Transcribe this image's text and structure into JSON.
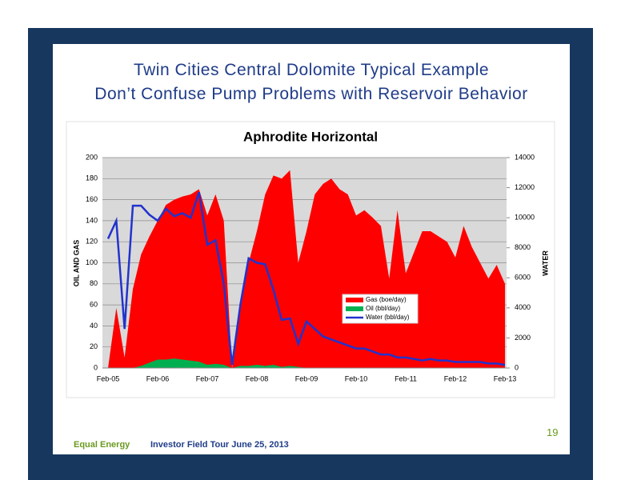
{
  "slide": {
    "title_lines": [
      "Twin Cities Central Dolomite Typical Example",
      "Don’t Confuse Pump Problems with Reservoir Behavior"
    ],
    "footer_company": "Equal Energy",
    "footer_event": "Investor Field Tour June 25, 2013",
    "page_number": "19"
  },
  "chart_data": {
    "type": "area",
    "title": "Aphrodite Horizontal",
    "ylabel": "OIL AND GAS",
    "y2label": "WATER",
    "categories": [
      "Feb-05",
      null,
      null,
      null,
      null,
      null,
      "Feb-06",
      null,
      null,
      null,
      null,
      null,
      "Feb-07",
      null,
      null,
      null,
      null,
      null,
      "Feb-08",
      null,
      null,
      null,
      null,
      null,
      "Feb-09",
      null,
      null,
      null,
      null,
      null,
      "Feb-10",
      null,
      null,
      null,
      null,
      null,
      "Feb-11",
      null,
      null,
      null,
      null,
      null,
      "Feb-12",
      null,
      null,
      null,
      null,
      null,
      "Feb-13"
    ],
    "ylim": [
      0,
      200
    ],
    "yticks": [
      0,
      20,
      40,
      60,
      80,
      100,
      120,
      140,
      160,
      180,
      200
    ],
    "y2lim": [
      0,
      14000
    ],
    "y2ticks": [
      0,
      2000,
      4000,
      6000,
      8000,
      10000,
      12000,
      14000
    ],
    "grid": true,
    "series": [
      {
        "name": "Gas (boe/day)",
        "color": "#ff0000",
        "type": "area",
        "values": [
          0,
          57,
          10,
          75,
          108,
          125,
          140,
          155,
          160,
          163,
          165,
          170,
          145,
          165,
          140,
          0,
          60,
          100,
          130,
          165,
          183,
          180,
          188,
          100,
          130,
          165,
          175,
          180,
          170,
          165,
          145,
          150,
          143,
          135,
          85,
          150,
          90,
          110,
          130,
          130,
          125,
          120,
          105,
          135,
          115,
          100,
          85,
          98,
          80
        ]
      },
      {
        "name": "Oil (bbl/day)",
        "color": "#00b050",
        "type": "area",
        "values": [
          0,
          0,
          0,
          0,
          2,
          5,
          8,
          8,
          9,
          8,
          7,
          6,
          3,
          4,
          3,
          0,
          2,
          2,
          3,
          2,
          3,
          1,
          2,
          1,
          0,
          0,
          0,
          0,
          0,
          0,
          0,
          0,
          0,
          0,
          0,
          0,
          0,
          0,
          0,
          0,
          0,
          0,
          0,
          0,
          0,
          0,
          0,
          0,
          0
        ]
      },
      {
        "name": "Water (bbl/day)",
        "color": "#2233cc",
        "type": "line",
        "axis": "y2",
        "values": [
          8600,
          9800,
          2600,
          10800,
          10800,
          10200,
          9800,
          10600,
          10100,
          10300,
          10000,
          11700,
          8200,
          8500,
          5600,
          200,
          4200,
          7300,
          7000,
          6900,
          5200,
          3200,
          3300,
          1600,
          3100,
          2600,
          2100,
          1900,
          1700,
          1500,
          1300,
          1300,
          1100,
          900,
          900,
          700,
          700,
          600,
          500,
          600,
          500,
          500,
          400,
          400,
          400,
          400,
          300,
          300,
          200
        ]
      }
    ]
  }
}
